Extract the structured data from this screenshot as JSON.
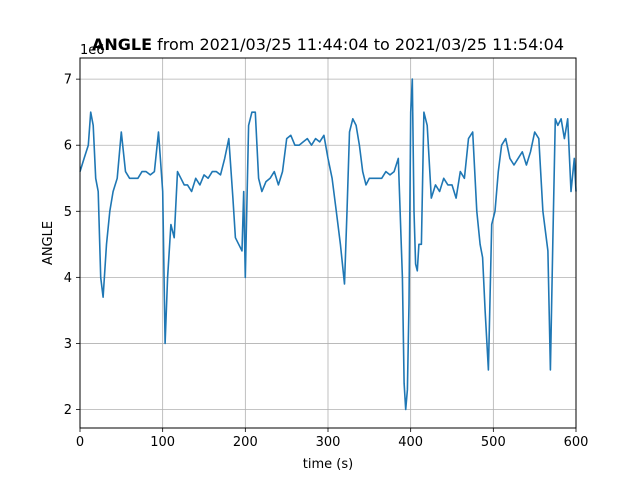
{
  "chart_data": {
    "type": "line",
    "title": {
      "bold": "ANGLE",
      "rest": " from 2021/03/25 11:44:04 to 2021/03/25 11:54:04"
    },
    "xlabel": "time (s)",
    "ylabel": "ANGLE",
    "y_offset_label": "1e6",
    "xlim": [
      0,
      600
    ],
    "ylim": [
      1.72,
      7.32
    ],
    "xticks": [
      "0",
      "100",
      "200",
      "300",
      "400",
      "500",
      "600"
    ],
    "yticks": [
      "2",
      "3",
      "4",
      "5",
      "6",
      "7"
    ],
    "grid": true,
    "series": [
      {
        "color": "#1f77b4",
        "x": [
          0,
          5,
          10,
          13,
          16,
          19,
          22,
          25,
          28,
          32,
          36,
          40,
          45,
          50,
          55,
          60,
          65,
          70,
          75,
          80,
          85,
          90,
          95,
          100,
          103,
          106,
          110,
          114,
          118,
          122,
          126,
          130,
          135,
          140,
          145,
          150,
          155,
          160,
          165,
          170,
          175,
          180,
          185,
          188,
          192,
          196,
          198,
          200,
          204,
          208,
          212,
          216,
          220,
          225,
          230,
          235,
          240,
          245,
          250,
          255,
          260,
          265,
          270,
          275,
          280,
          285,
          290,
          295,
          300,
          305,
          310,
          315,
          320,
          323,
          326,
          330,
          334,
          338,
          342,
          346,
          350,
          355,
          360,
          365,
          370,
          375,
          380,
          385,
          390,
          392,
          394,
          396,
          398,
          400,
          402,
          404,
          406,
          408,
          410,
          413,
          416,
          420,
          425,
          430,
          435,
          440,
          445,
          450,
          455,
          460,
          465,
          470,
          475,
          480,
          484,
          487,
          490,
          494,
          498,
          502,
          506,
          510,
          515,
          520,
          525,
          530,
          535,
          540,
          545,
          550,
          555,
          560,
          563,
          566,
          569,
          572,
          575,
          578,
          582,
          586,
          590,
          594,
          598,
          600
        ],
        "y": [
          5.6,
          5.8,
          6.0,
          6.5,
          6.3,
          5.5,
          5.3,
          4.0,
          3.7,
          4.5,
          5.0,
          5.3,
          5.5,
          6.2,
          5.6,
          5.5,
          5.5,
          5.5,
          5.6,
          5.6,
          5.55,
          5.6,
          6.2,
          5.3,
          3.0,
          4.0,
          4.8,
          4.6,
          5.6,
          5.5,
          5.4,
          5.4,
          5.3,
          5.5,
          5.4,
          5.55,
          5.5,
          5.6,
          5.6,
          5.55,
          5.8,
          6.1,
          5.2,
          4.6,
          4.5,
          4.4,
          5.3,
          4.0,
          6.3,
          6.5,
          6.5,
          5.5,
          5.3,
          5.45,
          5.5,
          5.6,
          5.4,
          5.6,
          6.1,
          6.15,
          6.0,
          6.0,
          6.05,
          6.1,
          6.0,
          6.1,
          6.05,
          6.15,
          5.8,
          5.5,
          5.0,
          4.5,
          3.9,
          5.0,
          6.2,
          6.4,
          6.3,
          6.0,
          5.6,
          5.4,
          5.5,
          5.5,
          5.5,
          5.5,
          5.6,
          5.55,
          5.6,
          5.8,
          4.0,
          2.4,
          2.0,
          2.3,
          3.6,
          6.5,
          7.0,
          5.0,
          4.2,
          4.1,
          4.5,
          4.5,
          6.5,
          6.3,
          5.2,
          5.4,
          5.3,
          5.5,
          5.4,
          5.4,
          5.2,
          5.6,
          5.5,
          6.1,
          6.2,
          5.0,
          4.5,
          4.3,
          3.5,
          2.6,
          4.8,
          5.0,
          5.6,
          6.0,
          6.1,
          5.8,
          5.7,
          5.8,
          5.9,
          5.7,
          5.9,
          6.2,
          6.1,
          5.0,
          4.7,
          4.4,
          2.6,
          4.6,
          6.4,
          6.3,
          6.4,
          6.1,
          6.4,
          5.3,
          5.8,
          5.3
        ]
      }
    ]
  }
}
